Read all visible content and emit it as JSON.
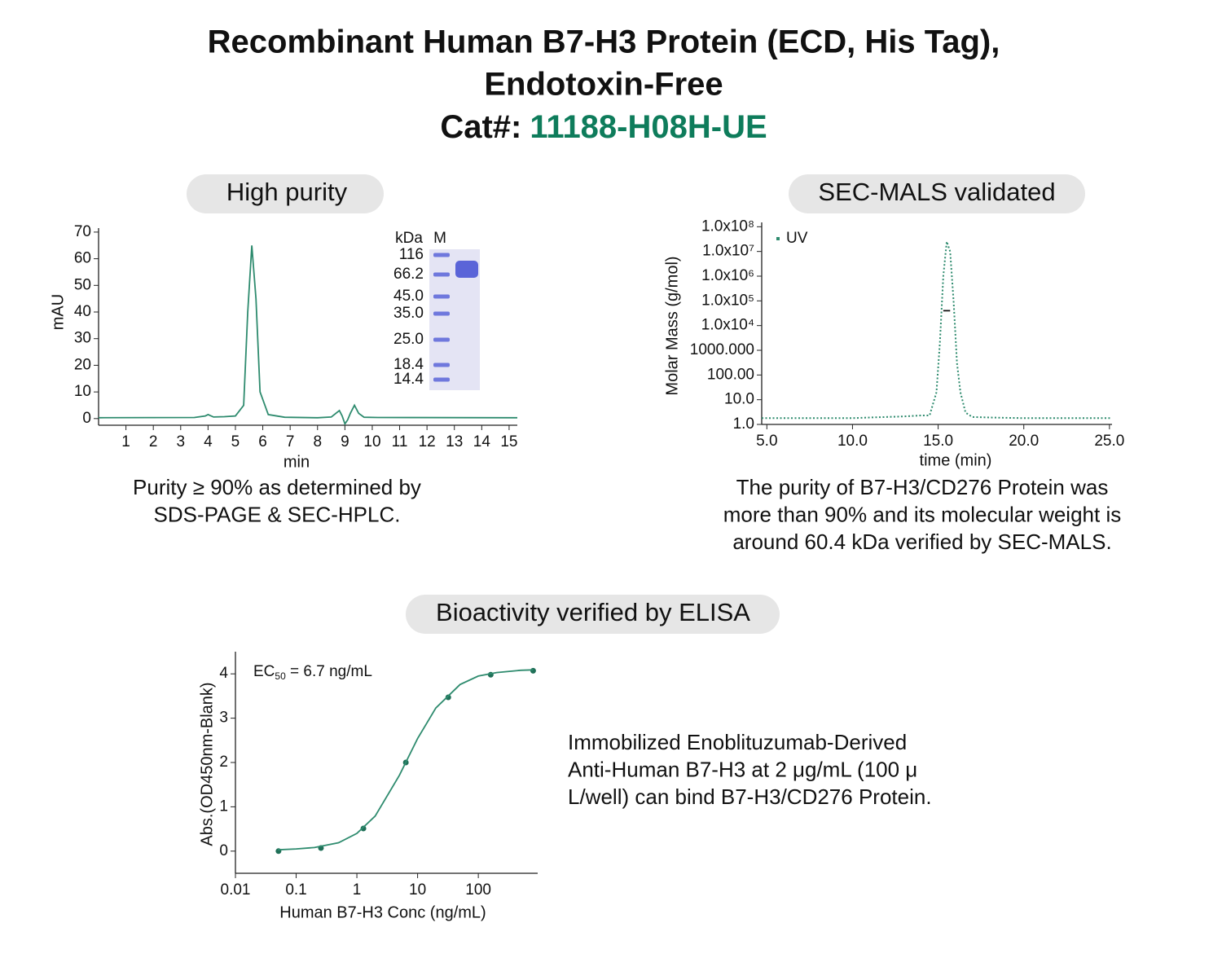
{
  "header": {
    "title_lines": [
      "Recombinant Human B7-H3 Protein (ECD, His Tag),",
      "Endotoxin-Free"
    ],
    "cat_label": "Cat#:",
    "cat_number": "11188-H08H-UE"
  },
  "panels": [
    {
      "pill": "High purity",
      "caption": [
        "Purity ≥ 90% as determined by",
        "SDS-PAGE & SEC-HPLC."
      ]
    },
    {
      "pill": "SEC-MALS validated",
      "caption": [
        "The purity of B7-H3/CD276 Protein was",
        "more than 90% and its molecular weight is",
        "around 60.4 kDa verified by SEC-MALS."
      ]
    },
    {
      "pill": "Bioactivity verified by ELISA",
      "caption": [
        "Immobilized Enoblituzumab-Derived",
        "Anti-Human B7-H3 at 2 μg/mL (100 μ",
        "L/well) can bind B7-H3/CD276 Protein."
      ]
    }
  ],
  "gel": {
    "unit": "kDa",
    "lane": "M",
    "markers": [
      "116",
      "66.2",
      "45.0",
      "35.0",
      "25.0",
      "18.4",
      "14.4"
    ]
  },
  "chart_data": [
    {
      "type": "line",
      "x_label": "min",
      "y_label": "mAU",
      "xlim": [
        0,
        15.3
      ],
      "ylim": [
        -2.5,
        71.5
      ],
      "xticks": [
        1,
        2,
        3,
        4,
        5,
        6,
        7,
        8,
        9,
        10,
        11,
        12,
        13,
        14,
        15
      ],
      "yticks": [
        0,
        10,
        20,
        30,
        40,
        50,
        60,
        70
      ],
      "series": [
        {
          "color": "#2e8b6e",
          "style": "solid",
          "x": [
            0,
            3.5,
            3.9,
            4.0,
            4.2,
            4.6,
            5.0,
            5.3,
            5.45,
            5.6,
            5.75,
            5.9,
            6.2,
            6.8,
            8.0,
            8.5,
            8.7,
            8.8,
            8.9,
            9.0,
            9.1,
            9.2,
            9.35,
            9.5,
            9.7,
            10.2,
            15.3
          ],
          "values": [
            0.3,
            0.4,
            1.0,
            1.5,
            0.6,
            0.7,
            1.0,
            5,
            40,
            65,
            45,
            10,
            1.5,
            0.5,
            0.3,
            0.6,
            2.2,
            3,
            1,
            -2,
            -0.5,
            2,
            5,
            2,
            0.5,
            0.4,
            0.3
          ]
        }
      ]
    },
    {
      "type": "line",
      "x_label": "time (min)",
      "y_label": "Molar Mass (g/mol)",
      "ylog": true,
      "legend": "top-left",
      "xlim": [
        4.7,
        25.15
      ],
      "ylim": [
        1,
        150000000
      ],
      "xticks": [
        {
          "value": 5,
          "label": "5.0"
        },
        {
          "value": 10,
          "label": "10.0"
        },
        {
          "value": 15,
          "label": "15.0"
        },
        {
          "value": 20,
          "label": "20.0"
        },
        {
          "value": 25,
          "label": "25.0"
        }
      ],
      "yticks": [
        {
          "value": 1,
          "label": "1.0"
        },
        {
          "value": 10,
          "label": "10.0"
        },
        {
          "value": 100,
          "label": "100.00"
        },
        {
          "value": 1000,
          "label": "1000.000"
        },
        {
          "value": 10000,
          "label": "1.0x10⁴"
        },
        {
          "value": 100000,
          "label": "1.0x10⁵"
        },
        {
          "value": 1000000,
          "label": "1.0x10⁶"
        },
        {
          "value": 10000000,
          "label": "1.0x10⁷"
        },
        {
          "value": 100000000,
          "label": "1.0x10⁸"
        }
      ],
      "series": [
        {
          "name": "UV",
          "color": "#2e8b6e",
          "style": "dotted",
          "x": [
            4.7,
            8,
            10,
            11,
            13,
            14,
            14.5,
            14.9,
            15.1,
            15.3,
            15.5,
            15.7,
            15.9,
            16.1,
            16.3,
            16.6,
            17,
            18,
            20,
            25.1
          ],
          "values": [
            1.8,
            1.8,
            1.8,
            1.9,
            2.1,
            2.3,
            2.3,
            20,
            2000,
            1000000,
            25000000,
            10000000,
            100000,
            300,
            20,
            3,
            2,
            1.9,
            1.8,
            1.8
          ]
        },
        {
          "color": "#111111",
          "style": "solid",
          "x": [
            15.3,
            15.7
          ],
          "values": [
            40000,
            40000
          ]
        }
      ]
    },
    {
      "type": "scatter",
      "x_label": "Human B7-H3 Conc (ng/mL)",
      "y_label": "Abs.(OD450nm-Blank)",
      "xlog": true,
      "annotation": {
        "text": "EC",
        "sub": "50",
        "rest": " = 6.7 ng/mL"
      },
      "xlim": [
        0.01,
        950
      ],
      "ylim": [
        -0.5,
        4.5
      ],
      "xticks": [
        0.01,
        0.1,
        1,
        10,
        100
      ],
      "yticks": [
        0,
        1,
        2,
        3,
        4
      ],
      "series": [
        {
          "mode": "markers",
          "color": "#1f6f57",
          "x": [
            0.0512,
            0.256,
            1.28,
            6.4,
            32,
            160,
            800
          ],
          "values": [
            0,
            0.07,
            0.51,
            2.0,
            3.47,
            3.98,
            4.07
          ]
        },
        {
          "mode": "line",
          "color": "#2e8b6e",
          "x": [
            0.05,
            0.1,
            0.2,
            0.5,
            1,
            2,
            5,
            10,
            20,
            50,
            100,
            200,
            500,
            800
          ],
          "values": [
            0.03,
            0.05,
            0.08,
            0.19,
            0.4,
            0.79,
            1.71,
            2.54,
            3.23,
            3.76,
            3.95,
            4.03,
            4.08,
            4.09
          ]
        }
      ]
    }
  ]
}
